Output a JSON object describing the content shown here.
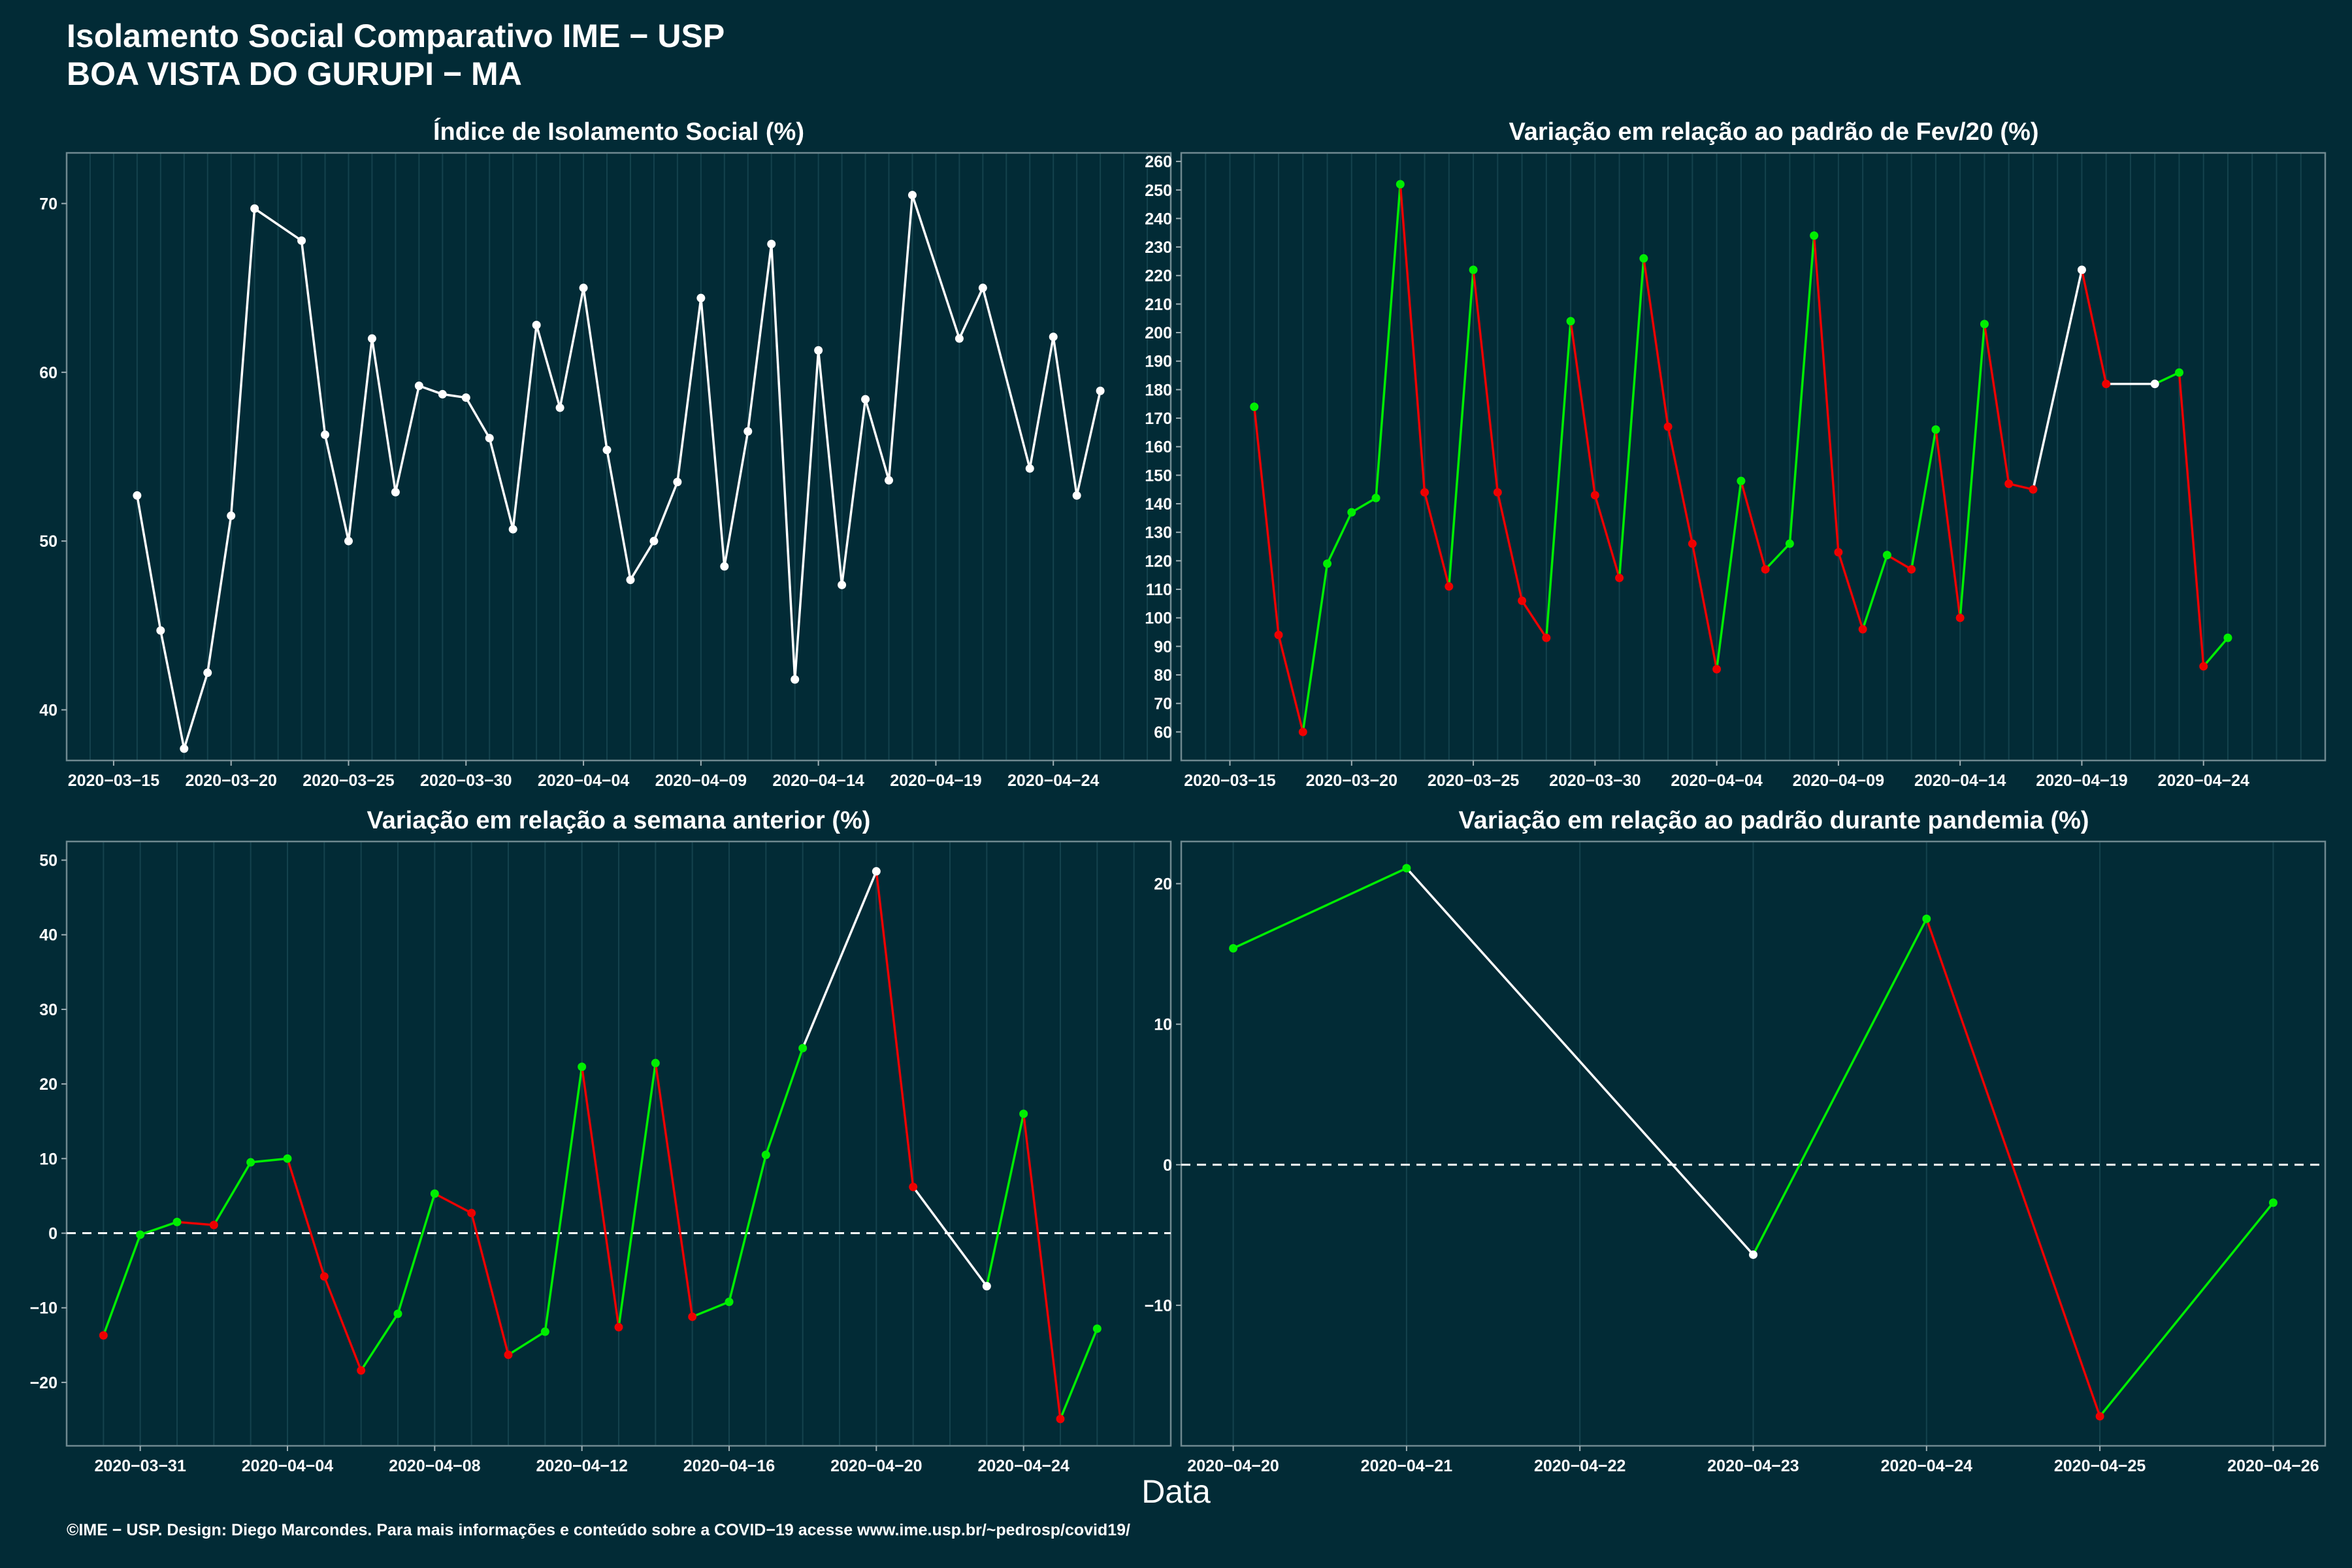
{
  "header": {
    "title_line1": "Isolamento Social Comparativo IME − USP",
    "title_line2": "BOA VISTA DO GURUPI − MA"
  },
  "footer": {
    "xlabel": "Data",
    "caption": "©IME − USP. Design: Diego Marcondes. Para mais informações e conteúdo sobre a COVID−19 acesse www.ime.usp.br/~pedrosp/covid19/"
  },
  "colors": {
    "background": "#022b36",
    "up": "#00ee00",
    "down": "#ee0000",
    "neutral": "#ffffff",
    "grid": "#14424d"
  },
  "chart_data": [
    {
      "id": "isolamento",
      "type": "line",
      "title": "Índice de Isolamento Social (%)",
      "xlim": [
        "2020-03-13",
        "2020-04-29"
      ],
      "ylim": [
        37.0,
        73.0
      ],
      "yticks": [
        40,
        50,
        60,
        70
      ],
      "xticks": [
        "2020-03-15",
        "2020-03-20",
        "2020-03-25",
        "2020-03-30",
        "2020-04-04",
        "2020-04-09",
        "2020-04-14",
        "2020-04-19",
        "2020-04-24"
      ],
      "hline": null,
      "colored": false,
      "points": [
        [
          "2020-03-16",
          52.7
        ],
        [
          "2020-03-17",
          44.7
        ],
        [
          "2020-03-18",
          37.7
        ],
        [
          "2020-03-19",
          42.2
        ],
        [
          "2020-03-20",
          51.5
        ],
        [
          "2020-03-21",
          69.7
        ],
        [
          "2020-03-23",
          67.8
        ],
        [
          "2020-03-24",
          56.3
        ],
        [
          "2020-03-25",
          50.0
        ],
        [
          "2020-03-26",
          62.0
        ],
        [
          "2020-03-27",
          52.9
        ],
        [
          "2020-03-28",
          59.2
        ],
        [
          "2020-03-29",
          58.7
        ],
        [
          "2020-03-30",
          58.5
        ],
        [
          "2020-03-31",
          56.1
        ],
        [
          "2020-04-01",
          50.7
        ],
        [
          "2020-04-02",
          62.8
        ],
        [
          "2020-04-03",
          57.9
        ],
        [
          "2020-04-04",
          65.0
        ],
        [
          "2020-04-05",
          55.4
        ],
        [
          "2020-04-06",
          47.7
        ],
        [
          "2020-04-07",
          50.0
        ],
        [
          "2020-04-08",
          53.5
        ],
        [
          "2020-04-09",
          64.4
        ],
        [
          "2020-04-10",
          48.5
        ],
        [
          "2020-04-11",
          56.5
        ],
        [
          "2020-04-12",
          67.6
        ],
        [
          "2020-04-13",
          41.8
        ],
        [
          "2020-04-14",
          61.3
        ],
        [
          "2020-04-15",
          47.4
        ],
        [
          "2020-04-16",
          58.4
        ],
        [
          "2020-04-17",
          53.6
        ],
        [
          "2020-04-18",
          70.5
        ],
        [
          "2020-04-20",
          62.0
        ],
        [
          "2020-04-21",
          65.0
        ],
        [
          "2020-04-23",
          54.3
        ],
        [
          "2020-04-24",
          62.1
        ],
        [
          "2020-04-25",
          52.7
        ],
        [
          "2020-04-26",
          58.9
        ]
      ]
    },
    {
      "id": "fev20",
      "type": "line",
      "title": "Variação em relação ao padrão de Fev/20 (%)",
      "xlim": [
        "2020-03-13",
        "2020-04-29"
      ],
      "ylim": [
        50,
        263
      ],
      "yticks": [
        60,
        70,
        80,
        90,
        100,
        110,
        120,
        130,
        140,
        150,
        160,
        170,
        180,
        190,
        200,
        210,
        220,
        230,
        240,
        250,
        260
      ],
      "xticks": [
        "2020-03-15",
        "2020-03-20",
        "2020-03-25",
        "2020-03-30",
        "2020-04-04",
        "2020-04-09",
        "2020-04-14",
        "2020-04-19",
        "2020-04-24"
      ],
      "hline": null,
      "colored": true,
      "points": [
        [
          "2020-03-16",
          174
        ],
        [
          "2020-03-17",
          94
        ],
        [
          "2020-03-18",
          60
        ],
        [
          "2020-03-19",
          119
        ],
        [
          "2020-03-20",
          137
        ],
        [
          "2020-03-21",
          142
        ],
        [
          "2020-03-22",
          252
        ],
        [
          "2020-03-23",
          144
        ],
        [
          "2020-03-24",
          111
        ],
        [
          "2020-03-25",
          222
        ],
        [
          "2020-03-26",
          144
        ],
        [
          "2020-03-27",
          106
        ],
        [
          "2020-03-28",
          93
        ],
        [
          "2020-03-29",
          204
        ],
        [
          "2020-03-30",
          143
        ],
        [
          "2020-03-31",
          114
        ],
        [
          "2020-04-01",
          226
        ],
        [
          "2020-04-02",
          167
        ],
        [
          "2020-04-03",
          126
        ],
        [
          "2020-04-04",
          82
        ],
        [
          "2020-04-05",
          148
        ],
        [
          "2020-04-06",
          117
        ],
        [
          "2020-04-07",
          126
        ],
        [
          "2020-04-08",
          234
        ],
        [
          "2020-04-09",
          123
        ],
        [
          "2020-04-10",
          96
        ],
        [
          "2020-04-11",
          122
        ],
        [
          "2020-04-12",
          117
        ],
        [
          "2020-04-13",
          166
        ],
        [
          "2020-04-14",
          100
        ],
        [
          "2020-04-15",
          203
        ],
        [
          "2020-04-16",
          147
        ],
        [
          "2020-04-17",
          145
        ],
        [
          "2020-04-19",
          222
        ],
        [
          "2020-04-20",
          182
        ],
        [
          "2020-04-22",
          182
        ],
        [
          "2020-04-23",
          186
        ],
        [
          "2020-04-24",
          83
        ],
        [
          "2020-04-25",
          93
        ]
      ]
    },
    {
      "id": "semana",
      "type": "line",
      "title": "Variação em relação a semana anterior (%)",
      "xlim": [
        "2020-03-29",
        "2020-04-28"
      ],
      "ylim": [
        -28.5,
        52.5
      ],
      "yticks": [
        -20,
        -10,
        0,
        10,
        20,
        30,
        40,
        50
      ],
      "xticks": [
        "2020-03-31",
        "2020-04-04",
        "2020-04-08",
        "2020-04-12",
        "2020-04-16",
        "2020-04-20",
        "2020-04-24"
      ],
      "hline": 0,
      "colored": true,
      "points": [
        [
          "2020-03-30",
          -13.7
        ],
        [
          "2020-03-31",
          -0.2
        ],
        [
          "2020-04-01",
          1.5
        ],
        [
          "2020-04-02",
          1.1
        ],
        [
          "2020-04-03",
          9.5
        ],
        [
          "2020-04-04",
          10.0
        ],
        [
          "2020-04-05",
          -5.8
        ],
        [
          "2020-04-06",
          -18.4
        ],
        [
          "2020-04-07",
          -10.8
        ],
        [
          "2020-04-08",
          5.3
        ],
        [
          "2020-04-09",
          2.7
        ],
        [
          "2020-04-10",
          -16.3
        ],
        [
          "2020-04-11",
          -13.2
        ],
        [
          "2020-04-12",
          22.3
        ],
        [
          "2020-04-13",
          -12.6
        ],
        [
          "2020-04-14",
          22.8
        ],
        [
          "2020-04-15",
          -11.2
        ],
        [
          "2020-04-16",
          -9.2
        ],
        [
          "2020-04-17",
          10.5
        ],
        [
          "2020-04-18",
          24.8
        ],
        [
          "2020-04-20",
          48.5
        ],
        [
          "2020-04-21",
          6.2
        ],
        [
          "2020-04-23",
          -7.1
        ],
        [
          "2020-04-24",
          16.0
        ],
        [
          "2020-04-25",
          -24.9
        ],
        [
          "2020-04-26",
          -12.8
        ]
      ]
    },
    {
      "id": "pandemia",
      "type": "line",
      "title": "Variação em relação ao padrão durante pandemia (%)",
      "xlim": [
        "2020-04-19.7",
        "2020-04-26.3"
      ],
      "ylim": [
        -20.0,
        23.0
      ],
      "yticks": [
        -10,
        0,
        10,
        20
      ],
      "xticks": [
        "2020-04-20",
        "2020-04-21",
        "2020-04-22",
        "2020-04-23",
        "2020-04-24",
        "2020-04-25",
        "2020-04-26"
      ],
      "hline": 0,
      "colored": true,
      "points": [
        [
          "2020-04-20",
          15.4
        ],
        [
          "2020-04-21",
          21.1
        ],
        [
          "2020-04-23",
          -6.4
        ],
        [
          "2020-04-24",
          17.5
        ],
        [
          "2020-04-25",
          -17.9
        ],
        [
          "2020-04-26",
          -2.7
        ]
      ]
    }
  ]
}
